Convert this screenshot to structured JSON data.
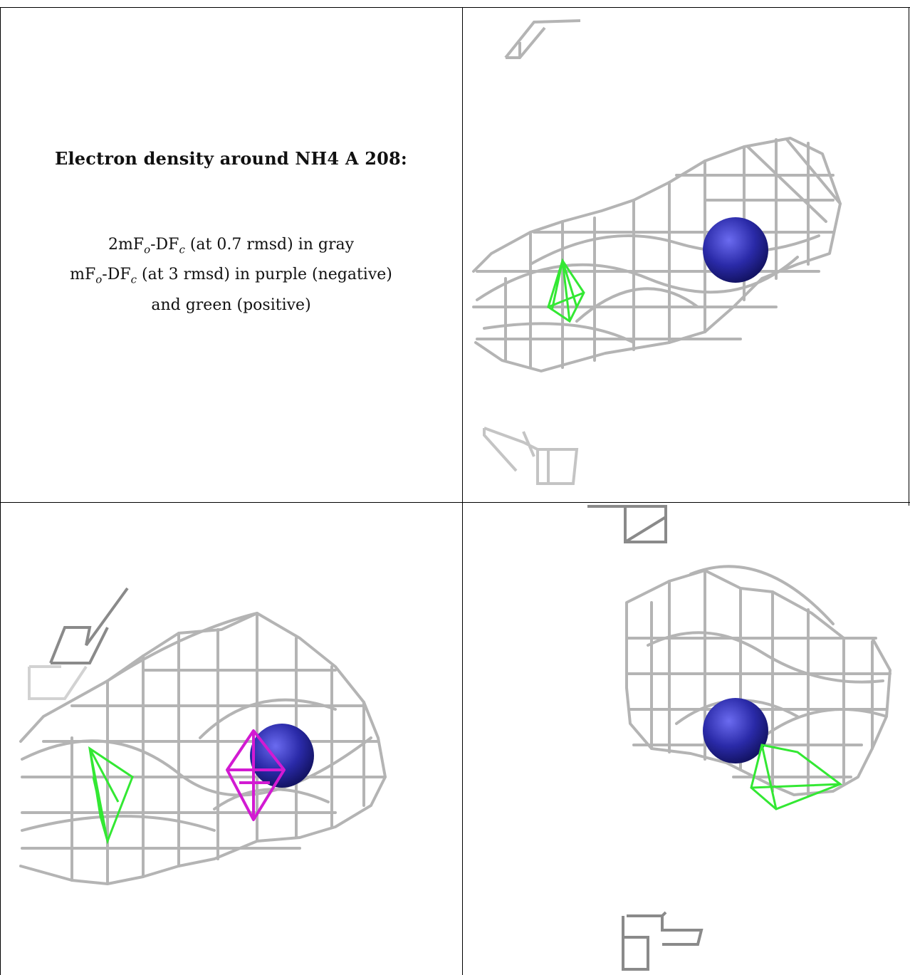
{
  "caption": {
    "title": "Electron density around NH4 A 208:",
    "line1_pre": "2mF",
    "line1_sub1": "o",
    "line1_mid": "-DF",
    "line1_sub2": "c",
    "line1_post": " (at 0.7 rmsd) in gray",
    "line2_pre": "mF",
    "line2_sub1": "o",
    "line2_mid": "-DF",
    "line2_sub2": "c",
    "line2_post": " (at 3 rmsd) in purple (negative)",
    "line3": "and green (positive)"
  },
  "colors": {
    "mesh_gray": "#b4b4b4",
    "mesh_dark": "#6e6e6e",
    "positive_green": "#33e833",
    "negative_purple": "#d21ad2",
    "atom_blue": "#2a2aa8"
  },
  "panels": [
    {
      "name": "caption-panel"
    },
    {
      "name": "density-view-top-right",
      "icons": [
        "ammonium-atom-sphere",
        "gray-density-mesh",
        "green-positive-density"
      ]
    },
    {
      "name": "density-view-bottom-left",
      "icons": [
        "ammonium-atom-sphere",
        "gray-density-mesh",
        "green-positive-density",
        "purple-negative-density"
      ]
    },
    {
      "name": "density-view-bottom-right",
      "icons": [
        "ammonium-atom-sphere",
        "gray-density-mesh",
        "green-positive-density"
      ]
    }
  ]
}
